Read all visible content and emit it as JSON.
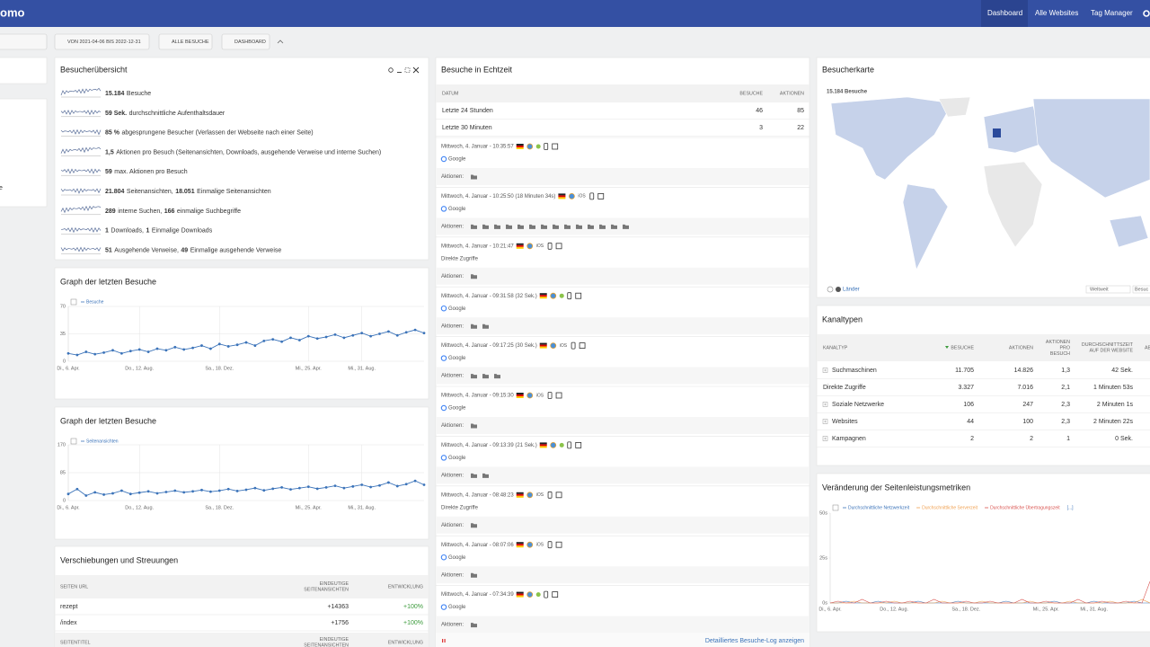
{
  "nav": {
    "logo": "omo",
    "items": [
      "Dashboard",
      "Alle Websites",
      "Tag Manager"
    ]
  },
  "toolbar": {
    "date": "VON 2021-04-06 BIS 2022-12-31",
    "segment": "ALLE BESUCHE",
    "dashboard": "DASHBOARD"
  },
  "left_fragment": "e",
  "overview": {
    "title": "Besucherübersicht",
    "rows": [
      [
        "15.184",
        "Besuche"
      ],
      [
        "59 Sek.",
        "durchschnittliche Aufenthaltsdauer"
      ],
      [
        "85 %",
        "abgesprungene Besucher (Verlassen der Webseite nach einer Seite)"
      ],
      [
        "1,5",
        "Aktionen pro Besuch (Seitenansichten, Downloads, ausgehende Verweise und interne Suchen)"
      ],
      [
        "59",
        "max. Aktionen pro Besuch"
      ],
      [
        "21.804",
        "Seitenansichten,",
        "18.051",
        "Einmalige Seitenansichten"
      ],
      [
        "289",
        "interne Suchen,",
        "166",
        "einmalige Suchbegriffe"
      ],
      [
        "1",
        "Downloads,",
        "1",
        "Einmalige Downloads"
      ],
      [
        "51",
        "Ausgehende Verweise,",
        "49",
        "Einmalige ausgehende Verweise"
      ]
    ]
  },
  "realtime": {
    "title": "Besuche in Echtzeit",
    "header": [
      "DATUM",
      "BESUCHE",
      "AKTIONEN"
    ],
    "rows": [
      [
        "Letzte 24 Stunden",
        "46",
        "85"
      ],
      [
        "Letzte 30 Minuten",
        "3",
        "22"
      ]
    ],
    "actions_label": "Aktionen:",
    "visits": [
      {
        "time": "Mittwoch, 4. Januar - 10:35:57",
        "source": "Google",
        "actions": 1
      },
      {
        "time": "Mittwoch, 4. Januar - 10:25:50 (18 Minuten 34s)",
        "os": "iOS",
        "source": "Google",
        "actions": 14
      },
      {
        "time": "Mittwoch, 4. Januar - 10:21:47",
        "os": "iOS",
        "source": "Direkte Zugriffe",
        "actions": 1
      },
      {
        "time": "Mittwoch, 4. Januar - 09:31:58 (32 Sek.)",
        "source": "Google",
        "actions": 2
      },
      {
        "time": "Mittwoch, 4. Januar - 09:17:25 (30 Sek.)",
        "os": "iOS",
        "source": "Google",
        "actions": 3
      },
      {
        "time": "Mittwoch, 4. Januar - 09:15:30",
        "os": "iOS",
        "source": "Google",
        "actions": 1
      },
      {
        "time": "Mittwoch, 4. Januar - 09:13:39 (21 Sek.)",
        "source": "Google",
        "actions": 2
      },
      {
        "time": "Mittwoch, 4. Januar - 08:48:23",
        "os": "iOS",
        "source": "Direkte Zugriffe",
        "actions": 1
      },
      {
        "time": "Mittwoch, 4. Januar - 08:07:06",
        "os": "iOS",
        "source": "Google",
        "actions": 1
      },
      {
        "time": "Mittwoch, 4. Januar - 07:34:39",
        "source": "Google",
        "actions": 1
      }
    ],
    "footer": "Detailliertes Besuche-Log anzeigen"
  },
  "map": {
    "title": "Besucherkarte",
    "total": "15.184 Besuche",
    "metric_link": "Länder",
    "select": "Weltweit",
    "select2": "Besuc"
  },
  "channels": {
    "title": "Kanaltypen",
    "header": [
      [
        "KANALTYP"
      ],
      [
        "BESUCHE"
      ],
      [
        "AKTIONEN"
      ],
      [
        "AKTIONEN",
        "PRO",
        "BESUCH"
      ],
      [
        "DURCHSCHNITTSZEIT",
        "AUF DER WEBSITE"
      ],
      [
        "AB"
      ]
    ],
    "rows": [
      {
        "label": "Suchmaschinen",
        "expandable": true,
        "cells": [
          "11.705",
          "14.826",
          "1,3",
          "42 Sek."
        ]
      },
      {
        "label": "Direkte Zugriffe",
        "expandable": false,
        "cells": [
          "3.327",
          "7.016",
          "2,1",
          "1 Minuten 53s"
        ]
      },
      {
        "label": "Soziale Netzwerke",
        "expandable": true,
        "cells": [
          "106",
          "247",
          "2,3",
          "2 Minuten 1s"
        ]
      },
      {
        "label": "Websites",
        "expandable": true,
        "cells": [
          "44",
          "100",
          "2,3",
          "2 Minuten 22s"
        ]
      },
      {
        "label": "Kampagnen",
        "expandable": true,
        "cells": [
          "2",
          "2",
          "1",
          "0 Sek."
        ]
      }
    ]
  },
  "transitions": {
    "title": "Verschiebungen und Streuungen",
    "header": [
      [
        "SEITEN URL"
      ],
      [
        "EINDEUTIGE",
        "SEITENANSICHTEN"
      ],
      [
        "ENTWICKLUNG"
      ]
    ],
    "rows": [
      [
        "rezept",
        "+14363",
        "+100%"
      ],
      [
        "/index",
        "+1756",
        "+100%"
      ]
    ],
    "header2": [
      [
        "SEITENTITEL"
      ],
      [
        "EINDEUTIGE",
        "SEITENANSICHTEN"
      ],
      [
        "ENTWICKLUNG"
      ]
    ]
  },
  "chart_data": [
    {
      "type": "line",
      "title": "Graph der letzten Besuche",
      "markers": true,
      "grid": true,
      "categories": [
        "Di., 6. Apr.",
        null,
        null,
        null,
        null,
        null,
        null,
        null,
        "Do., 12. Aug.",
        null,
        null,
        null,
        null,
        null,
        null,
        null,
        null,
        "Sa., 18. Dez.",
        null,
        null,
        null,
        null,
        null,
        null,
        null,
        null,
        null,
        "Mi., 25. Apr.",
        null,
        null,
        null,
        null,
        null,
        "Mi., 31. Aug.",
        null,
        null,
        null,
        null,
        null,
        null,
        null
      ],
      "series": [
        {
          "name": "Besuche",
          "color": "#3b73b9",
          "values": [
            10,
            8,
            12,
            9,
            11,
            14,
            10,
            13,
            15,
            12,
            16,
            14,
            18,
            15,
            17,
            20,
            16,
            22,
            19,
            21,
            24,
            20,
            26,
            28,
            25,
            30,
            27,
            32,
            29,
            31,
            34,
            30,
            33,
            36,
            32,
            35,
            38,
            33,
            37,
            40,
            36
          ]
        }
      ],
      "ylim": [
        0,
        70
      ],
      "yticks": [
        0,
        35,
        70
      ]
    },
    {
      "type": "line",
      "title": "Graph der letzten Besuche",
      "markers": true,
      "grid": true,
      "categories": [
        "Di., 6. Apr.",
        null,
        null,
        null,
        null,
        null,
        null,
        null,
        "Do., 12. Aug.",
        null,
        null,
        null,
        null,
        null,
        null,
        null,
        null,
        "Sa., 18. Dez.",
        null,
        null,
        null,
        null,
        null,
        null,
        null,
        null,
        null,
        "Mi., 25. Apr.",
        null,
        null,
        null,
        null,
        null,
        "Mi., 31. Aug.",
        null,
        null,
        null,
        null,
        null,
        null,
        null
      ],
      "series": [
        {
          "name": "Seitenansichten",
          "color": "#3b73b9",
          "values": [
            20,
            35,
            15,
            25,
            18,
            22,
            30,
            20,
            24,
            28,
            22,
            26,
            30,
            25,
            28,
            32,
            27,
            30,
            35,
            29,
            33,
            38,
            31,
            36,
            40,
            34,
            38,
            42,
            36,
            40,
            45,
            38,
            43,
            48,
            41,
            46,
            55,
            44,
            50,
            60,
            48
          ]
        }
      ],
      "ylim": [
        0,
        170
      ],
      "yticks": [
        0,
        85,
        170
      ]
    },
    {
      "type": "line",
      "title": "Veränderung der Seitenleistungsmetriken",
      "markers": false,
      "grid": false,
      "legend_more": "[...]",
      "categories": [
        "Di., 6. Apr.",
        null,
        null,
        null,
        null,
        null,
        null,
        null,
        "Do., 12. Aug.",
        null,
        null,
        null,
        null,
        null,
        null,
        null,
        null,
        "Sa., 18. Dez.",
        null,
        null,
        null,
        null,
        null,
        null,
        null,
        null,
        null,
        "Mi., 25. Apr.",
        null,
        null,
        null,
        null,
        null,
        "Mi., 31. Aug.",
        null,
        null,
        null,
        null,
        null,
        null,
        null
      ],
      "series": [
        {
          "name": "Durchschnittliche Netzwerkzeit",
          "color": "#3b73b9",
          "values": [
            0,
            0,
            1,
            0,
            0,
            0,
            1,
            0,
            0,
            0,
            0,
            1,
            0,
            0,
            0,
            0,
            1,
            0,
            0,
            0,
            0,
            0,
            1,
            0,
            0,
            0,
            0,
            0,
            1,
            0,
            0,
            0,
            0,
            1,
            0,
            0,
            0,
            0,
            1,
            0,
            0
          ]
        },
        {
          "name": "Durchschnittliche Serverzeit",
          "color": "#f0a050",
          "values": [
            0,
            0,
            0,
            1,
            0,
            0,
            0,
            0,
            1,
            0,
            0,
            0,
            0,
            0,
            1,
            0,
            0,
            0,
            0,
            1,
            0,
            0,
            0,
            0,
            0,
            1,
            0,
            0,
            0,
            0,
            1,
            0,
            0,
            0,
            0,
            1,
            0,
            0,
            0,
            2,
            0
          ]
        },
        {
          "name": "Durchschnittliche Übertragungszeit",
          "color": "#d9534f",
          "values": [
            0,
            1,
            0,
            0,
            2,
            0,
            0,
            1,
            0,
            0,
            1,
            0,
            0,
            2,
            0,
            0,
            0,
            1,
            0,
            0,
            1,
            0,
            0,
            0,
            2,
            0,
            0,
            1,
            0,
            0,
            0,
            2,
            0,
            0,
            1,
            0,
            0,
            1,
            0,
            0,
            12
          ]
        }
      ],
      "ylim": [
        0,
        50
      ],
      "yticks": [
        {
          "value": 0,
          "label": "0s"
        },
        {
          "value": 25,
          "label": "25s"
        },
        {
          "value": 50,
          "label": "50s"
        }
      ]
    }
  ]
}
